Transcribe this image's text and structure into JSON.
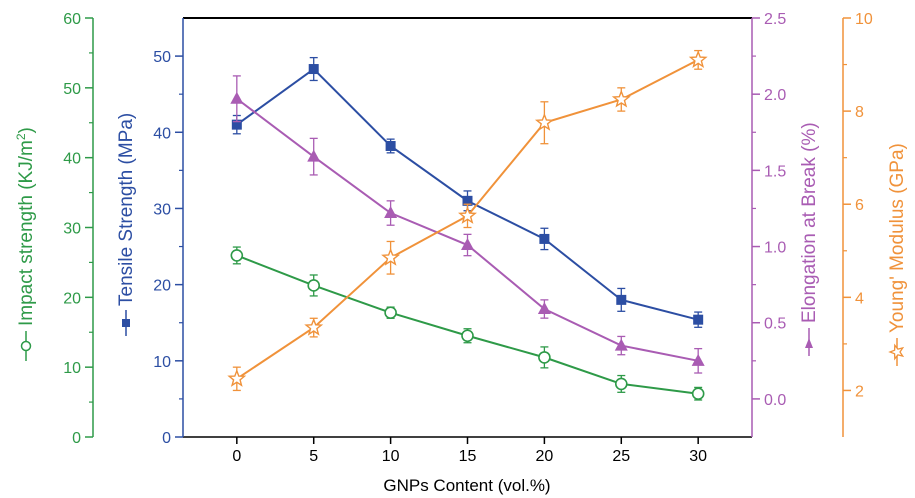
{
  "chart_data": {
    "type": "line",
    "x": [
      0,
      5,
      10,
      15,
      20,
      25,
      30
    ],
    "xlabel": "GNPs Content (vol.%)",
    "xticks": [
      "0",
      "5",
      "10",
      "15",
      "20",
      "25",
      "30"
    ],
    "xlim": [
      -3.5,
      33.5
    ],
    "colors": {
      "impact": "#2e9a48",
      "tensile": "#2c4ea3",
      "elongation": "#a95cb3",
      "modulus": "#f0923a",
      "frame": "#000000"
    },
    "axes": {
      "impact": {
        "label": "Impact strength (KJ/m",
        "label_sup": "2",
        "label_end": ")",
        "ylim": [
          0,
          60
        ],
        "ticks": [
          "0",
          "10",
          "20",
          "30",
          "40",
          "50",
          "60"
        ]
      },
      "tensile": {
        "label": "Tensile Strength (MPa)",
        "ylim": [
          0,
          55
        ],
        "ticks": [
          "0",
          "10",
          "20",
          "30",
          "40",
          "50"
        ]
      },
      "elongation": {
        "label": "Elongation at Break (%)",
        "ylim": [
          -0.25,
          2.5
        ],
        "ticks": [
          "0.0",
          "0.5",
          "1.0",
          "1.5",
          "2.0",
          "2.5"
        ]
      },
      "modulus": {
        "label": "Young' Modulus (GPa)",
        "ylim": [
          1,
          10
        ],
        "ticks": [
          "2",
          "4",
          "6",
          "8",
          "10"
        ]
      }
    },
    "series": [
      {
        "axis": "tensile",
        "marker": "square",
        "values": [
          41.0,
          48.3,
          38.2,
          31.0,
          26.0,
          18.0,
          15.4
        ],
        "errors": [
          1.2,
          1.5,
          0.9,
          1.3,
          1.4,
          1.5,
          1.0
        ]
      },
      {
        "axis": "elongation",
        "marker": "triangle",
        "values": [
          1.97,
          1.59,
          1.22,
          1.01,
          0.59,
          0.35,
          0.25
        ],
        "errors": [
          0.15,
          0.12,
          0.08,
          0.07,
          0.06,
          0.06,
          0.08
        ]
      },
      {
        "axis": "impact",
        "marker": "circle",
        "values": [
          26.0,
          21.7,
          17.8,
          14.5,
          11.4,
          7.6,
          6.2
        ],
        "errors": [
          1.2,
          1.5,
          0.8,
          1.0,
          1.5,
          1.2,
          0.9
        ]
      },
      {
        "axis": "modulus",
        "marker": "star",
        "values": [
          2.25,
          3.35,
          4.85,
          5.75,
          7.75,
          8.25,
          9.1
        ],
        "errors": [
          0.25,
          0.2,
          0.35,
          0.25,
          0.45,
          0.25,
          0.2
        ]
      }
    ]
  }
}
